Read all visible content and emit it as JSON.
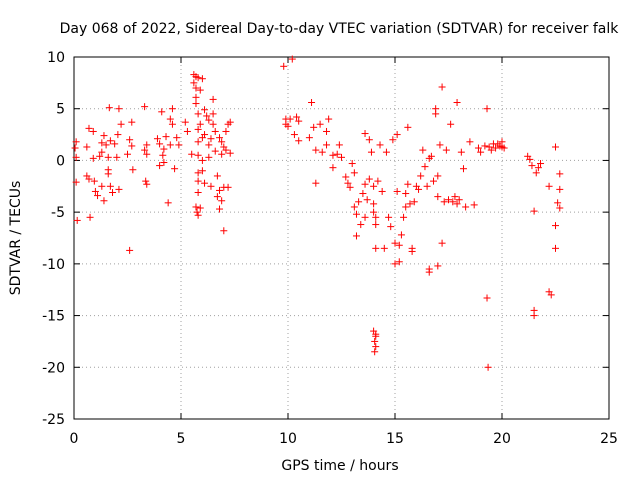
{
  "chart_data": {
    "type": "scatter",
    "title": "Day 068 of 2022, Sidereal Day-to-day VTEC variation (SDTVAR) for receiver falk",
    "xlabel": "GPS time / hours",
    "ylabel": "SDTVAR / TECUs",
    "xlim": [
      0,
      25
    ],
    "ylim": [
      -25,
      10
    ],
    "xticks": [
      0,
      5,
      10,
      15,
      20,
      25
    ],
    "yticks": [
      -25,
      -20,
      -15,
      -10,
      -5,
      0,
      5,
      10
    ],
    "grid": true,
    "marker": "+",
    "color": "#ff0000",
    "series": [
      {
        "name": "SDTVAR",
        "points": [
          [
            0.05,
            1.2
          ],
          [
            0.1,
            1.8
          ],
          [
            0.1,
            0.3
          ],
          [
            0.1,
            -2.1
          ],
          [
            0.15,
            -5.8
          ],
          [
            0.6,
            -1.5
          ],
          [
            0.6,
            1.3
          ],
          [
            0.7,
            3.1
          ],
          [
            0.7,
            -1.8
          ],
          [
            0.75,
            -5.5
          ],
          [
            0.9,
            0.2
          ],
          [
            0.9,
            2.8
          ],
          [
            0.95,
            -2.0
          ],
          [
            1.0,
            -3.0
          ],
          [
            1.1,
            -3.4
          ],
          [
            1.2,
            0.4
          ],
          [
            1.3,
            1.7
          ],
          [
            1.3,
            0.8
          ],
          [
            1.3,
            -2.5
          ],
          [
            1.4,
            2.4
          ],
          [
            1.4,
            -3.9
          ],
          [
            1.5,
            1.5
          ],
          [
            1.6,
            0.3
          ],
          [
            1.6,
            -1.3
          ],
          [
            1.6,
            -0.9
          ],
          [
            1.65,
            5.1
          ],
          [
            1.7,
            1.9
          ],
          [
            1.7,
            -2.5
          ],
          [
            1.8,
            -3.1
          ],
          [
            1.9,
            1.6
          ],
          [
            2.0,
            0.3
          ],
          [
            2.05,
            2.5
          ],
          [
            2.1,
            5.0
          ],
          [
            2.1,
            -2.8
          ],
          [
            2.2,
            3.5
          ],
          [
            2.5,
            0.6
          ],
          [
            2.6,
            -8.7
          ],
          [
            2.6,
            2.0
          ],
          [
            2.7,
            1.4
          ],
          [
            2.7,
            3.7
          ],
          [
            2.75,
            -0.9
          ],
          [
            3.3,
            5.2
          ],
          [
            3.3,
            1.0
          ],
          [
            3.35,
            -2.0
          ],
          [
            3.4,
            -2.3
          ],
          [
            3.4,
            1.5
          ],
          [
            3.4,
            0.6
          ],
          [
            3.9,
            2.1
          ],
          [
            4.0,
            1.6
          ],
          [
            4.0,
            -0.5
          ],
          [
            4.1,
            4.7
          ],
          [
            4.15,
            0.5
          ],
          [
            4.2,
            1.1
          ],
          [
            4.2,
            -0.2
          ],
          [
            4.3,
            2.3
          ],
          [
            4.4,
            -4.1
          ],
          [
            4.5,
            1.5
          ],
          [
            4.5,
            4.0
          ],
          [
            4.6,
            3.5
          ],
          [
            4.6,
            5.0
          ],
          [
            4.7,
            -0.8
          ],
          [
            4.8,
            2.2
          ],
          [
            4.9,
            1.5
          ],
          [
            5.2,
            3.7
          ],
          [
            5.3,
            2.8
          ],
          [
            5.5,
            0.6
          ],
          [
            5.6,
            8.3
          ],
          [
            5.6,
            7.5
          ],
          [
            5.7,
            8.1
          ],
          [
            5.7,
            7.0
          ],
          [
            5.7,
            6.1
          ],
          [
            5.7,
            5.5
          ],
          [
            5.8,
            8.0
          ],
          [
            5.8,
            4.5
          ],
          [
            5.8,
            3.0
          ],
          [
            5.8,
            1.8
          ],
          [
            5.8,
            0.5
          ],
          [
            5.8,
            -1.2
          ],
          [
            5.8,
            -2.0
          ],
          [
            5.8,
            -3.1
          ],
          [
            5.7,
            -4.5
          ],
          [
            5.75,
            -5.0
          ],
          [
            5.8,
            -5.3
          ],
          [
            5.9,
            -4.6
          ],
          [
            5.9,
            6.8
          ],
          [
            5.9,
            3.5
          ],
          [
            6.0,
            7.9
          ],
          [
            6.0,
            2.2
          ],
          [
            6.0,
            0.0
          ],
          [
            6.0,
            -1.0
          ],
          [
            6.1,
            2.5
          ],
          [
            6.1,
            4.9
          ],
          [
            6.1,
            -2.2
          ],
          [
            6.2,
            4.3
          ],
          [
            6.3,
            3.9
          ],
          [
            6.3,
            1.5
          ],
          [
            6.3,
            0.3
          ],
          [
            6.4,
            2.1
          ],
          [
            6.4,
            -2.5
          ],
          [
            6.5,
            5.9
          ],
          [
            6.5,
            4.5
          ],
          [
            6.5,
            3.5
          ],
          [
            6.6,
            2.8
          ],
          [
            6.6,
            0.9
          ],
          [
            6.7,
            -1.5
          ],
          [
            6.7,
            -3.5
          ],
          [
            6.8,
            -2.9
          ],
          [
            6.8,
            -4.7
          ],
          [
            6.8,
            2.2
          ],
          [
            6.9,
            1.8
          ],
          [
            6.9,
            -3.9
          ],
          [
            6.9,
            0.6
          ],
          [
            7.0,
            -2.6
          ],
          [
            7.0,
            -6.8
          ],
          [
            7.0,
            1.3
          ],
          [
            7.1,
            1.0
          ],
          [
            7.1,
            2.8
          ],
          [
            7.2,
            3.5
          ],
          [
            7.2,
            -2.6
          ],
          [
            7.3,
            0.7
          ],
          [
            7.3,
            3.7
          ],
          [
            9.8,
            9.1
          ],
          [
            9.9,
            4.0
          ],
          [
            9.9,
            3.5
          ],
          [
            10.0,
            3.3
          ],
          [
            10.1,
            4.0
          ],
          [
            10.2,
            9.8
          ],
          [
            10.3,
            2.5
          ],
          [
            10.4,
            4.2
          ],
          [
            10.5,
            1.9
          ],
          [
            10.5,
            3.8
          ],
          [
            11.0,
            2.2
          ],
          [
            11.1,
            5.6
          ],
          [
            11.2,
            3.2
          ],
          [
            11.3,
            1.0
          ],
          [
            11.3,
            -2.2
          ],
          [
            11.5,
            3.5
          ],
          [
            11.6,
            0.8
          ],
          [
            11.8,
            1.5
          ],
          [
            11.8,
            2.8
          ],
          [
            11.9,
            4.0
          ],
          [
            12.1,
            0.5
          ],
          [
            12.1,
            -0.7
          ],
          [
            12.3,
            0.6
          ],
          [
            12.4,
            1.5
          ],
          [
            12.5,
            0.3
          ],
          [
            12.7,
            -1.6
          ],
          [
            12.8,
            -2.2
          ],
          [
            12.9,
            -2.6
          ],
          [
            13.0,
            -0.3
          ],
          [
            13.1,
            -1.2
          ],
          [
            13.1,
            -4.5
          ],
          [
            13.2,
            -5.2
          ],
          [
            13.2,
            -7.3
          ],
          [
            13.3,
            -4.0
          ],
          [
            13.4,
            -6.2
          ],
          [
            13.5,
            -3.2
          ],
          [
            13.6,
            -2.3
          ],
          [
            13.6,
            -5.5
          ],
          [
            13.6,
            2.6
          ],
          [
            13.7,
            -3.8
          ],
          [
            13.8,
            -1.8
          ],
          [
            13.8,
            2.0
          ],
          [
            13.9,
            0.8
          ],
          [
            14.0,
            -2.5
          ],
          [
            14.0,
            -4.2
          ],
          [
            14.0,
            -5.0
          ],
          [
            14.1,
            -5.5
          ],
          [
            14.1,
            -6.2
          ],
          [
            14.1,
            -8.5
          ],
          [
            14.0,
            -16.5
          ],
          [
            14.1,
            -17.0
          ],
          [
            14.05,
            -17.5
          ],
          [
            14.1,
            -18.0
          ],
          [
            14.05,
            -18.5
          ],
          [
            14.1,
            -16.8
          ],
          [
            14.2,
            -2.0
          ],
          [
            14.3,
            1.5
          ],
          [
            14.4,
            -3.0
          ],
          [
            14.5,
            -8.5
          ],
          [
            14.6,
            0.8
          ],
          [
            14.7,
            -5.5
          ],
          [
            14.8,
            -6.4
          ],
          [
            14.9,
            2.0
          ],
          [
            15.0,
            -8.0
          ],
          [
            15.0,
            -10.0
          ],
          [
            15.1,
            2.5
          ],
          [
            15.1,
            -3.0
          ],
          [
            15.2,
            -9.8
          ],
          [
            15.2,
            -8.2
          ],
          [
            15.3,
            -7.2
          ],
          [
            15.4,
            -5.5
          ],
          [
            15.5,
            -4.5
          ],
          [
            15.5,
            -3.2
          ],
          [
            15.6,
            3.2
          ],
          [
            15.6,
            -2.3
          ],
          [
            15.7,
            -4.2
          ],
          [
            15.8,
            -8.5
          ],
          [
            15.8,
            -8.8
          ],
          [
            15.9,
            -4.0
          ],
          [
            16.0,
            -2.5
          ],
          [
            16.1,
            -2.8
          ],
          [
            16.2,
            -1.5
          ],
          [
            16.3,
            1.0
          ],
          [
            16.4,
            -0.6
          ],
          [
            16.5,
            -2.5
          ],
          [
            16.6,
            -10.5
          ],
          [
            16.6,
            -10.8
          ],
          [
            16.6,
            0.2
          ],
          [
            16.7,
            0.4
          ],
          [
            16.8,
            -2.0
          ],
          [
            16.9,
            5.0
          ],
          [
            16.9,
            4.5
          ],
          [
            17.0,
            -10.2
          ],
          [
            17.0,
            -3.5
          ],
          [
            17.0,
            -1.5
          ],
          [
            17.1,
            1.5
          ],
          [
            17.2,
            7.1
          ],
          [
            17.2,
            -8.0
          ],
          [
            17.3,
            -4.0
          ],
          [
            17.4,
            1.0
          ],
          [
            17.5,
            -3.8
          ],
          [
            17.6,
            3.5
          ],
          [
            17.7,
            -4.0
          ],
          [
            17.8,
            -3.5
          ],
          [
            17.9,
            5.6
          ],
          [
            17.9,
            -4.2
          ],
          [
            18.0,
            -3.8
          ],
          [
            18.1,
            0.8
          ],
          [
            18.2,
            -0.8
          ],
          [
            18.3,
            -4.5
          ],
          [
            18.5,
            1.8
          ],
          [
            18.7,
            -4.3
          ],
          [
            18.9,
            1.2
          ],
          [
            19.0,
            0.8
          ],
          [
            19.2,
            1.4
          ],
          [
            19.3,
            5.0
          ],
          [
            19.3,
            -13.3
          ],
          [
            19.35,
            -20.0
          ],
          [
            19.4,
            1.3
          ],
          [
            19.5,
            1.0
          ],
          [
            19.6,
            1.6
          ],
          [
            19.7,
            1.2
          ],
          [
            19.8,
            1.6
          ],
          [
            19.9,
            1.4
          ],
          [
            20.0,
            1.3
          ],
          [
            20.0,
            1.8
          ],
          [
            20.1,
            1.2
          ],
          [
            21.2,
            0.4
          ],
          [
            21.3,
            0.1
          ],
          [
            21.4,
            -0.5
          ],
          [
            21.5,
            -4.9
          ],
          [
            21.5,
            -14.5
          ],
          [
            21.5,
            -15.0
          ],
          [
            21.6,
            -1.2
          ],
          [
            21.7,
            -0.7
          ],
          [
            21.8,
            -0.3
          ],
          [
            22.2,
            -2.5
          ],
          [
            22.2,
            -12.7
          ],
          [
            22.3,
            -13.0
          ],
          [
            22.5,
            1.3
          ],
          [
            22.5,
            -8.5
          ],
          [
            22.5,
            -6.3
          ],
          [
            22.6,
            -4.1
          ],
          [
            22.7,
            -2.8
          ],
          [
            22.7,
            -4.6
          ],
          [
            22.7,
            -1.3
          ]
        ]
      }
    ]
  }
}
